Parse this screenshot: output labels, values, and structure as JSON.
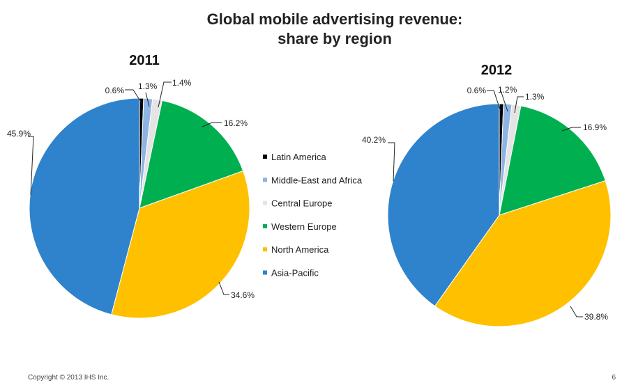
{
  "page": {
    "title_line1": "Global mobile advertising revenue:",
    "title_line2": "share by region",
    "copyright": "Copyright © 2013 IHS Inc.",
    "page_number": "6"
  },
  "legend": [
    {
      "name": "Latin America",
      "color": "#000000"
    },
    {
      "name": "Middle-East and Africa",
      "color": "#8DB4E2"
    },
    {
      "name": "Central Europe",
      "color": "#E4E4E4"
    },
    {
      "name": "Western Europe",
      "color": "#00B050"
    },
    {
      "name": "North America",
      "color": "#FFC000"
    },
    {
      "name": "Asia-Pacific",
      "color": "#2E83CC"
    }
  ],
  "chart_data": [
    {
      "type": "pie",
      "title": "2011",
      "categories": [
        "Latin America",
        "Middle-East and Africa",
        "Central Europe",
        "Western Europe",
        "North America",
        "Asia-Pacific"
      ],
      "values": [
        0.6,
        1.3,
        1.4,
        16.2,
        34.6,
        45.9
      ],
      "labels": [
        "0.6%",
        "1.3%",
        "1.4%",
        "16.2%",
        "34.6%",
        "45.9%"
      ],
      "legend_position": "between charts"
    },
    {
      "type": "pie",
      "title": "2012",
      "categories": [
        "Latin America",
        "Middle-East and Africa",
        "Central Europe",
        "Western Europe",
        "North America",
        "Asia-Pacific"
      ],
      "values": [
        0.6,
        1.2,
        1.3,
        16.9,
        39.8,
        40.2
      ],
      "labels": [
        "0.6%",
        "1.2%",
        "1.3%",
        "16.9%",
        "39.8%",
        "40.2%"
      ],
      "legend_position": "between charts"
    }
  ]
}
